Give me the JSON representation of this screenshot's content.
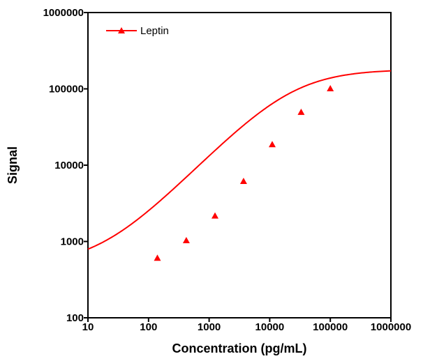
{
  "chart_data": {
    "type": "line",
    "xlabel": "Concentration (pg/mL)",
    "ylabel": "Signal",
    "xscale": "log",
    "yscale": "log",
    "xlim": [
      10,
      1000000
    ],
    "ylim": [
      100,
      1000000
    ],
    "x_ticks": [
      10,
      100,
      1000,
      10000,
      100000,
      1000000
    ],
    "x_tick_labels": [
      "10",
      "100",
      "1000",
      "10000",
      "100000",
      "1000000"
    ],
    "y_ticks": [
      100,
      1000,
      10000,
      100000,
      1000000
    ],
    "y_tick_labels": [
      "100",
      "1000",
      "10000",
      "100000",
      "1000000"
    ],
    "grid": false,
    "legend_position": "top-left",
    "series": [
      {
        "name": "Leptin",
        "color": "#ff0000",
        "marker": "triangle",
        "points": [
          {
            "x": 140,
            "y": 600
          },
          {
            "x": 420,
            "y": 1020
          },
          {
            "x": 1250,
            "y": 2150
          },
          {
            "x": 3700,
            "y": 6100
          },
          {
            "x": 11000,
            "y": 18500
          },
          {
            "x": 33000,
            "y": 49000
          },
          {
            "x": 100000,
            "y": 100000
          }
        ],
        "fit_curve": {
          "type": "4PL",
          "bottom": 480,
          "top": 180000,
          "ec50": 23000,
          "hill": 0.82
        }
      }
    ]
  }
}
